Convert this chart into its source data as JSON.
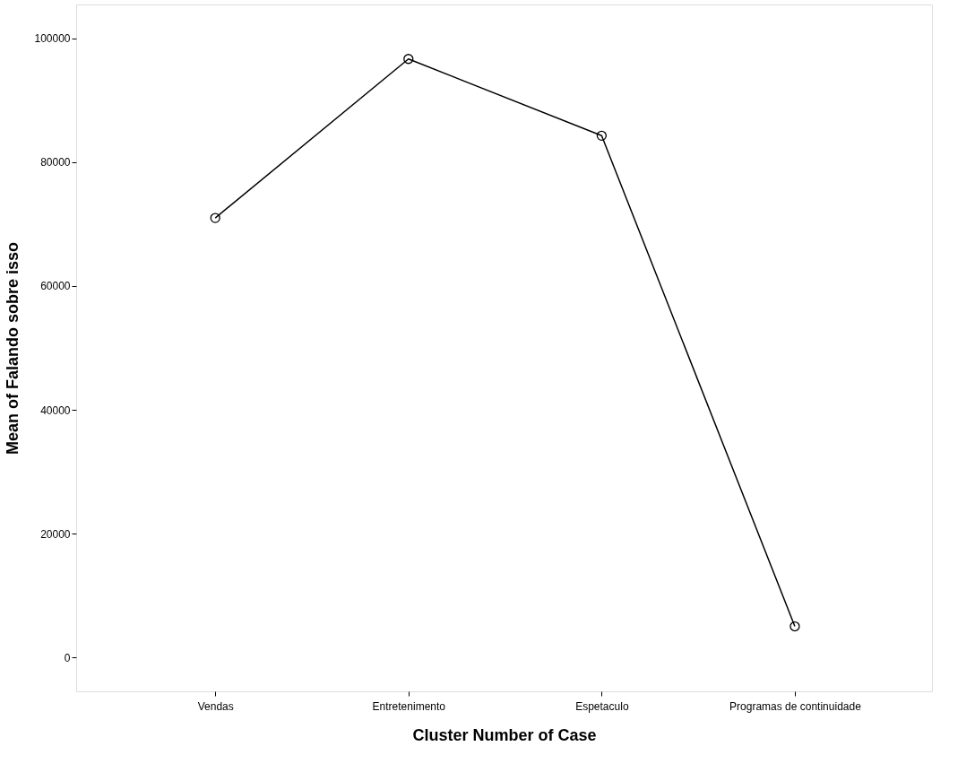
{
  "chart_data": {
    "type": "line",
    "xlabel": "Cluster Number of Case",
    "ylabel": "Mean of Falando sobre isso",
    "categories": [
      "Vendas",
      "Entretenimento",
      "Espetaculo",
      "Programas de continuidade"
    ],
    "series": [
      {
        "color": "#000000",
        "values": [
          71000,
          96700,
          84300,
          5000
        ]
      }
    ],
    "ylim": [
      -5500,
      105500
    ],
    "yticks": [
      0,
      20000,
      40000,
      60000,
      80000,
      100000
    ],
    "grid": false,
    "legend": false,
    "marker": "circle",
    "line_style": "solid"
  }
}
